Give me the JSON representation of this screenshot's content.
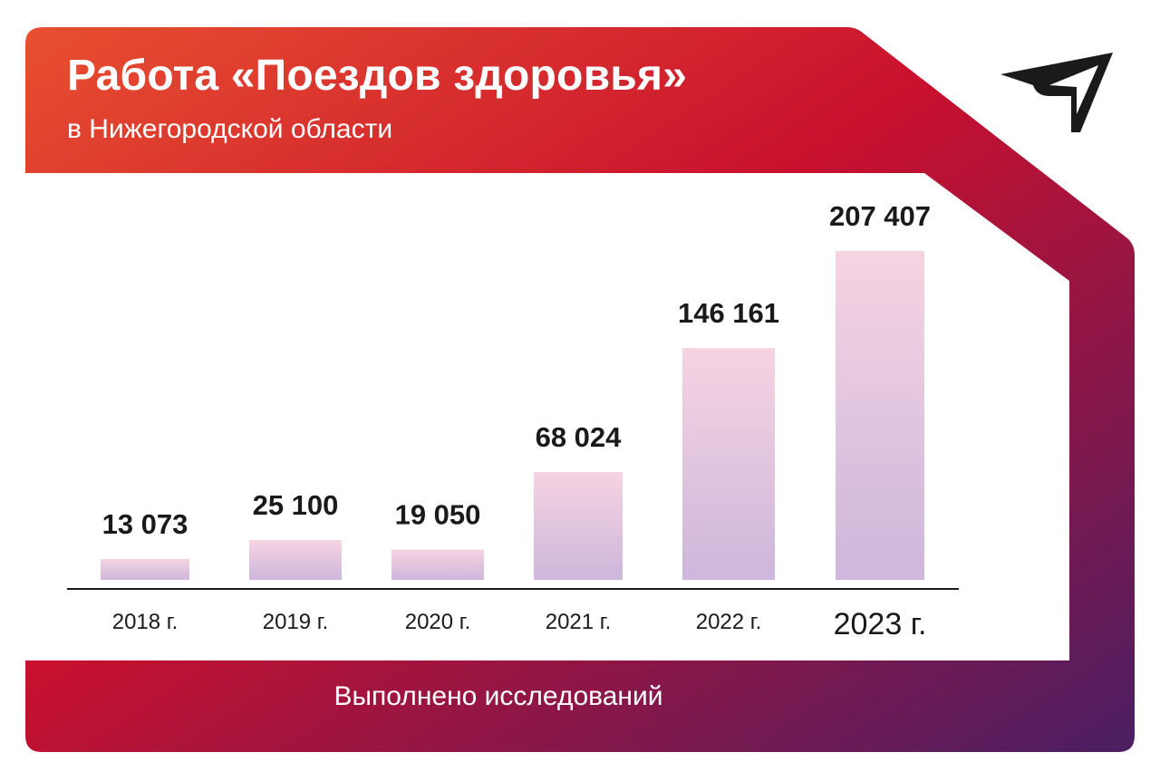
{
  "header": {
    "title": "Работа «Поездов здоровья»",
    "subtitle": "в Нижегородской области"
  },
  "footer": {
    "label": "Выполнено исследований"
  },
  "logo": {
    "icon": "arrow-logo-icon"
  },
  "colors": {
    "frame_gradient_start": "#e8502f",
    "frame_gradient_mid": "#c8102e",
    "frame_gradient_end": "#4a1e63",
    "bar_top": "#f6d3e1",
    "bar_bottom": "#cdb7dc",
    "text_dark": "#1a1a1a"
  },
  "chart_data": {
    "type": "bar",
    "categories": [
      "2018 г.",
      "2019 г.",
      "2020 г.",
      "2021 г.",
      "2022 г.",
      "2023 г."
    ],
    "values": [
      13073,
      25100,
      19050,
      68024,
      146161,
      207407
    ],
    "value_labels": [
      "13 073",
      "25 100",
      "19 050",
      "68 024",
      "146 161",
      "207 407"
    ],
    "title": "Работа «Поездов здоровья»",
    "subtitle": "в Нижегородской области",
    "xlabel": "",
    "ylabel": "",
    "ylim": [
      0,
      207407
    ],
    "grid": false,
    "legend": "none",
    "highlight_category": "2023 г."
  }
}
